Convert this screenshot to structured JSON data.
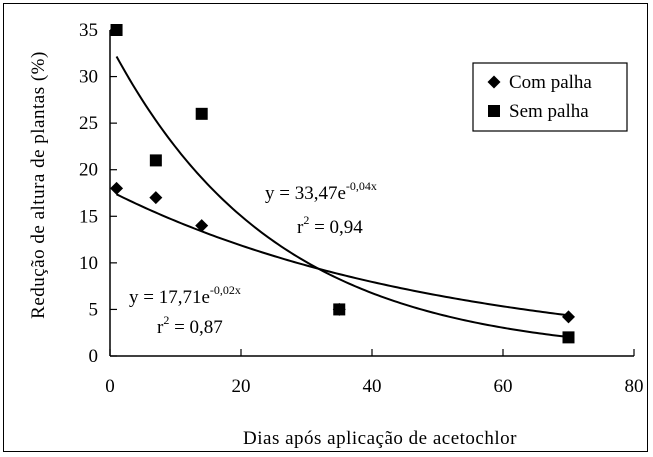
{
  "chart_data": {
    "type": "scatter",
    "xlabel": "Dias após aplicação de acetochlor",
    "ylabel": "Redução de altura de plantas (%)",
    "xlim": [
      0,
      80
    ],
    "ylim": [
      0,
      35
    ],
    "x_ticks": [
      "0",
      "20",
      "40",
      "60",
      "80"
    ],
    "y_ticks": [
      "0",
      "5",
      "10",
      "15",
      "20",
      "25",
      "30",
      "35"
    ],
    "grid": false,
    "legend_position": "top-right",
    "series": [
      {
        "name": "Com palha",
        "marker": "diamond",
        "color": "#000000",
        "points": [
          {
            "x": 1,
            "y": 18
          },
          {
            "x": 7,
            "y": 17
          },
          {
            "x": 14,
            "y": 14
          },
          {
            "x": 35,
            "y": 5
          },
          {
            "x": 70,
            "y": 4.2
          }
        ],
        "fit": {
          "a": 17.71,
          "b": -0.02,
          "equation_prefix": "y = 17,71e",
          "equation_exponent": "-0,02x",
          "r2_label": "r",
          "r2_sup": "2",
          "r2_value": " = 0,87"
        }
      },
      {
        "name": "Sem palha",
        "marker": "square",
        "color": "#000000",
        "points": [
          {
            "x": 1,
            "y": 35
          },
          {
            "x": 7,
            "y": 21
          },
          {
            "x": 14,
            "y": 26
          },
          {
            "x": 35,
            "y": 5
          },
          {
            "x": 70,
            "y": 2
          }
        ],
        "fit": {
          "a": 33.47,
          "b": -0.04,
          "equation_prefix": "y = 33,47e",
          "equation_exponent": "-0,04x",
          "r2_label": "r",
          "r2_sup": "2",
          "r2_value": " = 0,94"
        }
      }
    ]
  }
}
